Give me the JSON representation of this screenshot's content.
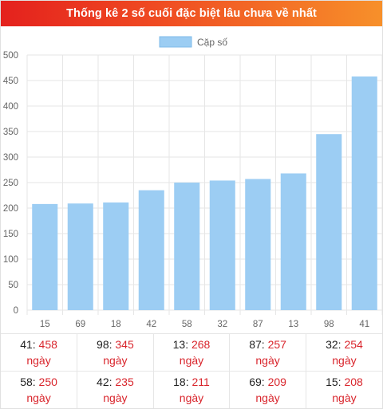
{
  "header": {
    "title": "Thống kê 2 số cuối đặc biệt lâu chưa về nhất"
  },
  "chart_data": {
    "type": "bar",
    "title": "",
    "categories": [
      "15",
      "69",
      "18",
      "42",
      "58",
      "32",
      "87",
      "13",
      "98",
      "41"
    ],
    "series": [
      {
        "name": "Cặp số",
        "values": [
          208,
          209,
          211,
          235,
          250,
          254,
          257,
          268,
          345,
          458
        ],
        "color": "#9ccdf3"
      }
    ],
    "ylim": [
      0,
      500
    ],
    "yticks": [
      0,
      50,
      100,
      150,
      200,
      250,
      300,
      350,
      400,
      450,
      500
    ],
    "grid": true,
    "legend_position": "top"
  },
  "summary": {
    "unit": "ngày",
    "rows": [
      [
        {
          "num": "41",
          "days": "458"
        },
        {
          "num": "98",
          "days": "345"
        },
        {
          "num": "13",
          "days": "268"
        },
        {
          "num": "87",
          "days": "257"
        },
        {
          "num": "32",
          "days": "254"
        }
      ],
      [
        {
          "num": "58",
          "days": "250"
        },
        {
          "num": "42",
          "days": "235"
        },
        {
          "num": "18",
          "days": "211"
        },
        {
          "num": "69",
          "days": "209"
        },
        {
          "num": "15",
          "days": "208"
        }
      ]
    ]
  }
}
